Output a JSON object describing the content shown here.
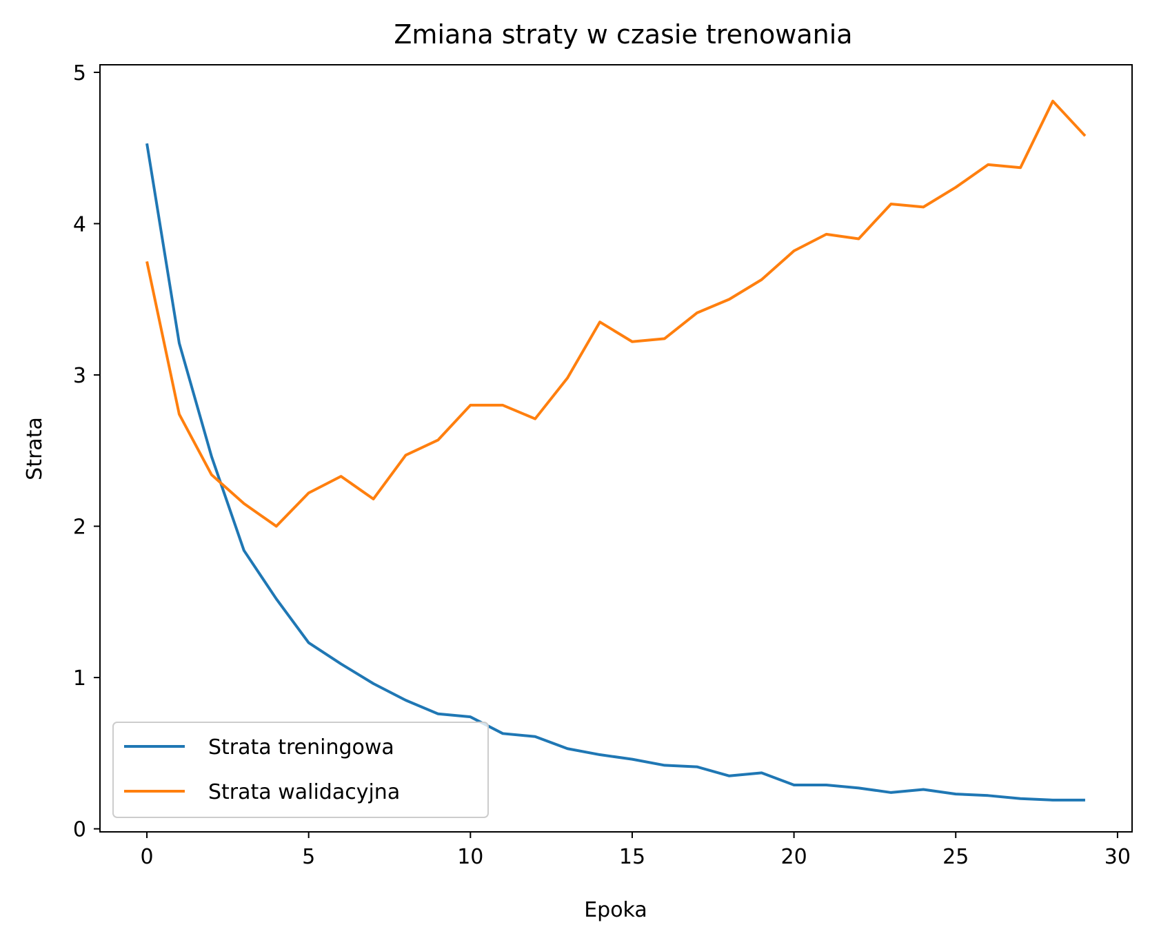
{
  "chart_data": {
    "type": "line",
    "title": "Zmiana straty w czasie trenowania",
    "xlabel": "Epoka",
    "ylabel": "Strata",
    "xlim": [
      -1.45,
      30.45
    ],
    "ylim": [
      -0.02,
      5.05
    ],
    "xticks": [
      0,
      5,
      10,
      15,
      20,
      25,
      30
    ],
    "yticks": [
      0,
      1,
      2,
      3,
      4,
      5
    ],
    "grid": false,
    "legend_position": "lower-left",
    "x": [
      0,
      1,
      2,
      3,
      4,
      5,
      6,
      7,
      8,
      9,
      10,
      11,
      12,
      13,
      14,
      15,
      16,
      17,
      18,
      19,
      20,
      21,
      22,
      23,
      24,
      25,
      26,
      27,
      28,
      29
    ],
    "series": [
      {
        "name": "Strata treningowa",
        "color": "#1f77b4",
        "values": [
          4.53,
          3.21,
          2.46,
          1.84,
          1.52,
          1.23,
          1.09,
          0.96,
          0.85,
          0.76,
          0.74,
          0.63,
          0.61,
          0.53,
          0.49,
          0.46,
          0.42,
          0.41,
          0.35,
          0.37,
          0.29,
          0.29,
          0.27,
          0.24,
          0.26,
          0.23,
          0.22,
          0.2,
          0.19,
          0.19
        ]
      },
      {
        "name": "Strata walidacyjna",
        "color": "#ff7f0e",
        "values": [
          3.75,
          2.74,
          2.34,
          2.15,
          2.0,
          2.22,
          2.33,
          2.18,
          2.47,
          2.57,
          2.8,
          2.8,
          2.71,
          2.98,
          3.35,
          3.22,
          3.24,
          3.41,
          3.5,
          3.63,
          3.82,
          3.93,
          3.9,
          4.13,
          4.11,
          4.24,
          4.39,
          4.37,
          4.81,
          4.58
        ]
      }
    ]
  }
}
